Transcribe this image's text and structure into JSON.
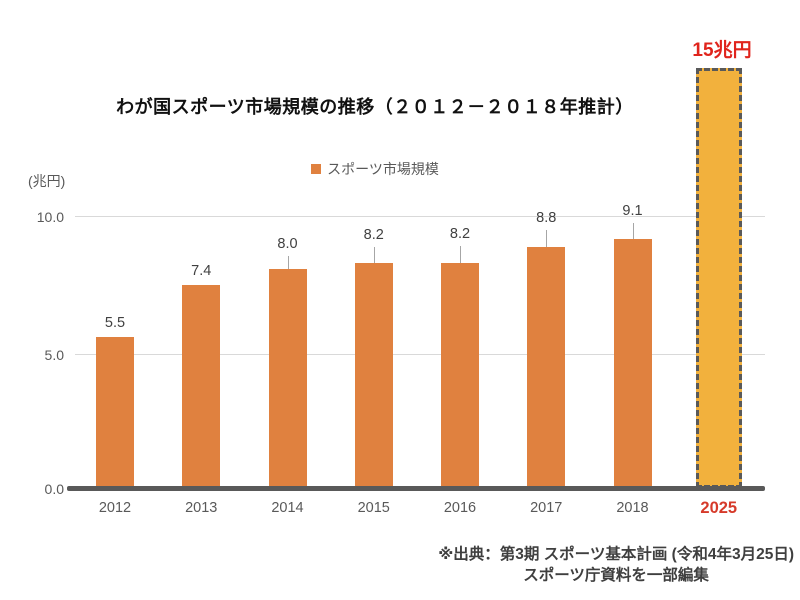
{
  "chart_data": {
    "type": "bar",
    "title": "わが国スポーツ市場規模の推移（２０１２－２０１８年推計）",
    "categories": [
      "2012",
      "2013",
      "2014",
      "2015",
      "2016",
      "2017",
      "2018",
      "2025"
    ],
    "values": [
      5.5,
      7.4,
      8.0,
      8.2,
      8.2,
      8.8,
      9.1,
      15
    ],
    "bar_labels": [
      "5.5",
      "7.4",
      "8.0",
      "8.2",
      "8.2",
      "8.8",
      "9.1",
      ""
    ],
    "ylabel": "(兆円)",
    "yticks": [
      0.0,
      5.0,
      10.0
    ],
    "ytick_labels": [
      "0.0",
      "5.0",
      "10.0"
    ],
    "ylim": [
      0,
      15.5
    ],
    "grid": true,
    "legend": [
      "スポーツ市場規模"
    ],
    "legend_position": "top-center",
    "highlight": {
      "category": "2025",
      "value": 15,
      "label": "15兆円",
      "style": "gold bar with dashed border, red labels"
    }
  },
  "source": {
    "line1": "※出典：第3期 スポーツ基本計画 (令和4年3月25日)",
    "line2": "スポーツ庁資料を一部編集"
  },
  "colors": {
    "bar_orange": "#E0813F",
    "bar_gold": "#F2B13D",
    "dash_border": "#595959",
    "axis_line": "#595959",
    "gridline": "#D9D9D9",
    "tick_text": "#595959",
    "value_text": "#404040",
    "title_text": "#111111",
    "legend_text": "#595959",
    "source_text": "#3F3F3F",
    "red_highlight": "#E0241C",
    "red_year": "#D63A2A"
  }
}
